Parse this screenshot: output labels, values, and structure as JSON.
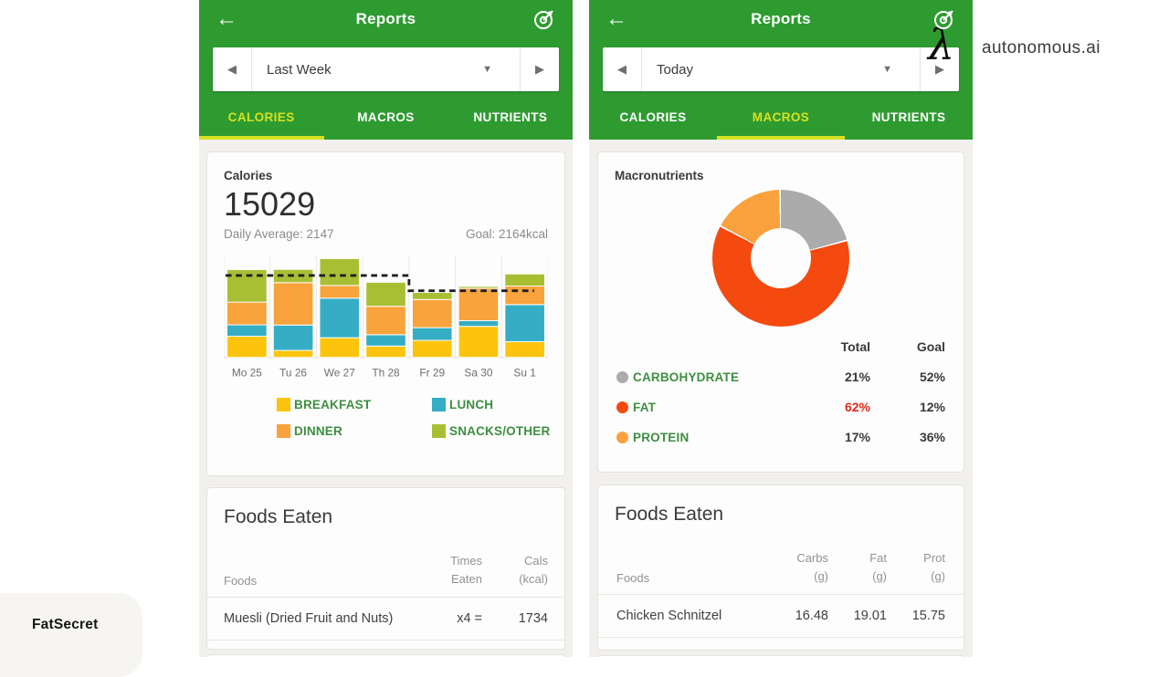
{
  "colors": {
    "header_green": "#2e9b31",
    "tab_active_yellow": "#d6e021",
    "breakfast": "#fcc40d",
    "lunch": "#35aec5",
    "dinner": "#f8a33c",
    "snacks": "#a8bf34",
    "carb_gray": "#ababab",
    "fat_red": "#f4490f",
    "protein_orange": "#f9a13c",
    "fat_value_red": "#e02a1d",
    "label_green": "#3e8e41"
  },
  "brand": {
    "lambda": "λ",
    "text": "autonomous.ai"
  },
  "watermark": "FatSecret",
  "left_phone": {
    "header": {
      "back": "←",
      "title": "Reports"
    },
    "date_selector": {
      "prev": "◀",
      "value": "Last Week",
      "caret": "▼",
      "next": "▶"
    },
    "tabs": [
      {
        "label": "CALORIES",
        "active": true
      },
      {
        "label": "MACROS",
        "active": false
      },
      {
        "label": "NUTRIENTS",
        "active": false
      }
    ],
    "calories_card": {
      "title": "Calories",
      "total": "15029",
      "daily_average": "Daily Average: 2147",
      "goal": "Goal: 2164kcal"
    },
    "foods_card": {
      "title": "Foods Eaten",
      "col_foods": "Foods",
      "col_times": "Times\nEaten",
      "col_cals": "Cals\n(kcal)",
      "rows": [
        {
          "food": "Muesli (Dried Fruit and Nuts)",
          "times": "x4 =",
          "cals": "1734"
        }
      ]
    }
  },
  "right_phone": {
    "header": {
      "back": "←",
      "title": "Reports"
    },
    "date_selector": {
      "prev": "◀",
      "value": "Today",
      "caret": "▼",
      "next": "▶"
    },
    "tabs": [
      {
        "label": "CALORIES",
        "active": false
      },
      {
        "label": "MACROS",
        "active": true
      },
      {
        "label": "NUTRIENTS",
        "active": false
      }
    ],
    "macros_card": {
      "title": "Macronutrients",
      "col_total": "Total",
      "col_goal": "Goal",
      "rows": [
        {
          "label": "CARBOHYDRATE",
          "dot_color": "#ababab",
          "total": "21%",
          "goal": "52%",
          "total_color": "#3a3a3a"
        },
        {
          "label": "FAT",
          "dot_color": "#f4490f",
          "total": "62%",
          "goal": "12%",
          "total_color": "#e02a1d"
        },
        {
          "label": "PROTEIN",
          "dot_color": "#f9a13c",
          "total": "17%",
          "goal": "36%",
          "total_color": "#3a3a3a"
        }
      ]
    },
    "foods_card": {
      "title": "Foods Eaten",
      "col_foods": "Foods",
      "col_carbs": "Carbs\n(g)",
      "col_fat": "Fat\n(g)",
      "col_prot": "Prot\n(g)",
      "rows": [
        {
          "food": "Chicken Schnitzel",
          "carbs": "16.48",
          "fat": "19.01",
          "prot": "15.75"
        }
      ]
    }
  },
  "chart_data": [
    {
      "type": "bar",
      "stacked": true,
      "title": "Calories by day (Last Week)",
      "categories": [
        "Mo 25",
        "Tu 26",
        "We 27",
        "Th 28",
        "Fr 29",
        "Sa 30",
        "Su 1"
      ],
      "series": [
        {
          "name": "BREAKFAST",
          "color": "#fcc40d",
          "values": [
            560,
            185,
            520,
            300,
            450,
            820,
            415
          ]
        },
        {
          "name": "LUNCH",
          "color": "#35aec5",
          "values": [
            300,
            670,
            1045,
            300,
            335,
            150,
            980
          ]
        },
        {
          "name": "DINNER",
          "color": "#f8a33c",
          "values": [
            600,
            1120,
            335,
            750,
            745,
            855,
            490
          ]
        },
        {
          "name": "SNACKS/OTHER",
          "color": "#a8bf34",
          "values": [
            860,
            350,
            710,
            635,
            185,
            50,
            320
          ]
        }
      ],
      "goal_line": {
        "style": "dashed",
        "color": "#1f1f1f",
        "values": [
          2164,
          2164,
          2164,
          2164,
          1760,
          1760,
          1760
        ]
      },
      "ylim": [
        0,
        2700
      ],
      "grid": "vertical-light",
      "legend_position": "bottom",
      "week_total": 15029,
      "daily_average": 2147,
      "goal": "2164kcal"
    },
    {
      "type": "pie",
      "donut": true,
      "title": "Macronutrients (Today)",
      "labels": [
        "CARBOHYDRATE",
        "FAT",
        "PROTEIN"
      ],
      "values": [
        21,
        62,
        17
      ],
      "goal_values": [
        52,
        12,
        36
      ],
      "colors": [
        "#ababab",
        "#f4490f",
        "#f9a13c"
      ],
      "start_angle_deg": 0,
      "direction": "clockwise",
      "legend_position": "bottom-table"
    }
  ]
}
